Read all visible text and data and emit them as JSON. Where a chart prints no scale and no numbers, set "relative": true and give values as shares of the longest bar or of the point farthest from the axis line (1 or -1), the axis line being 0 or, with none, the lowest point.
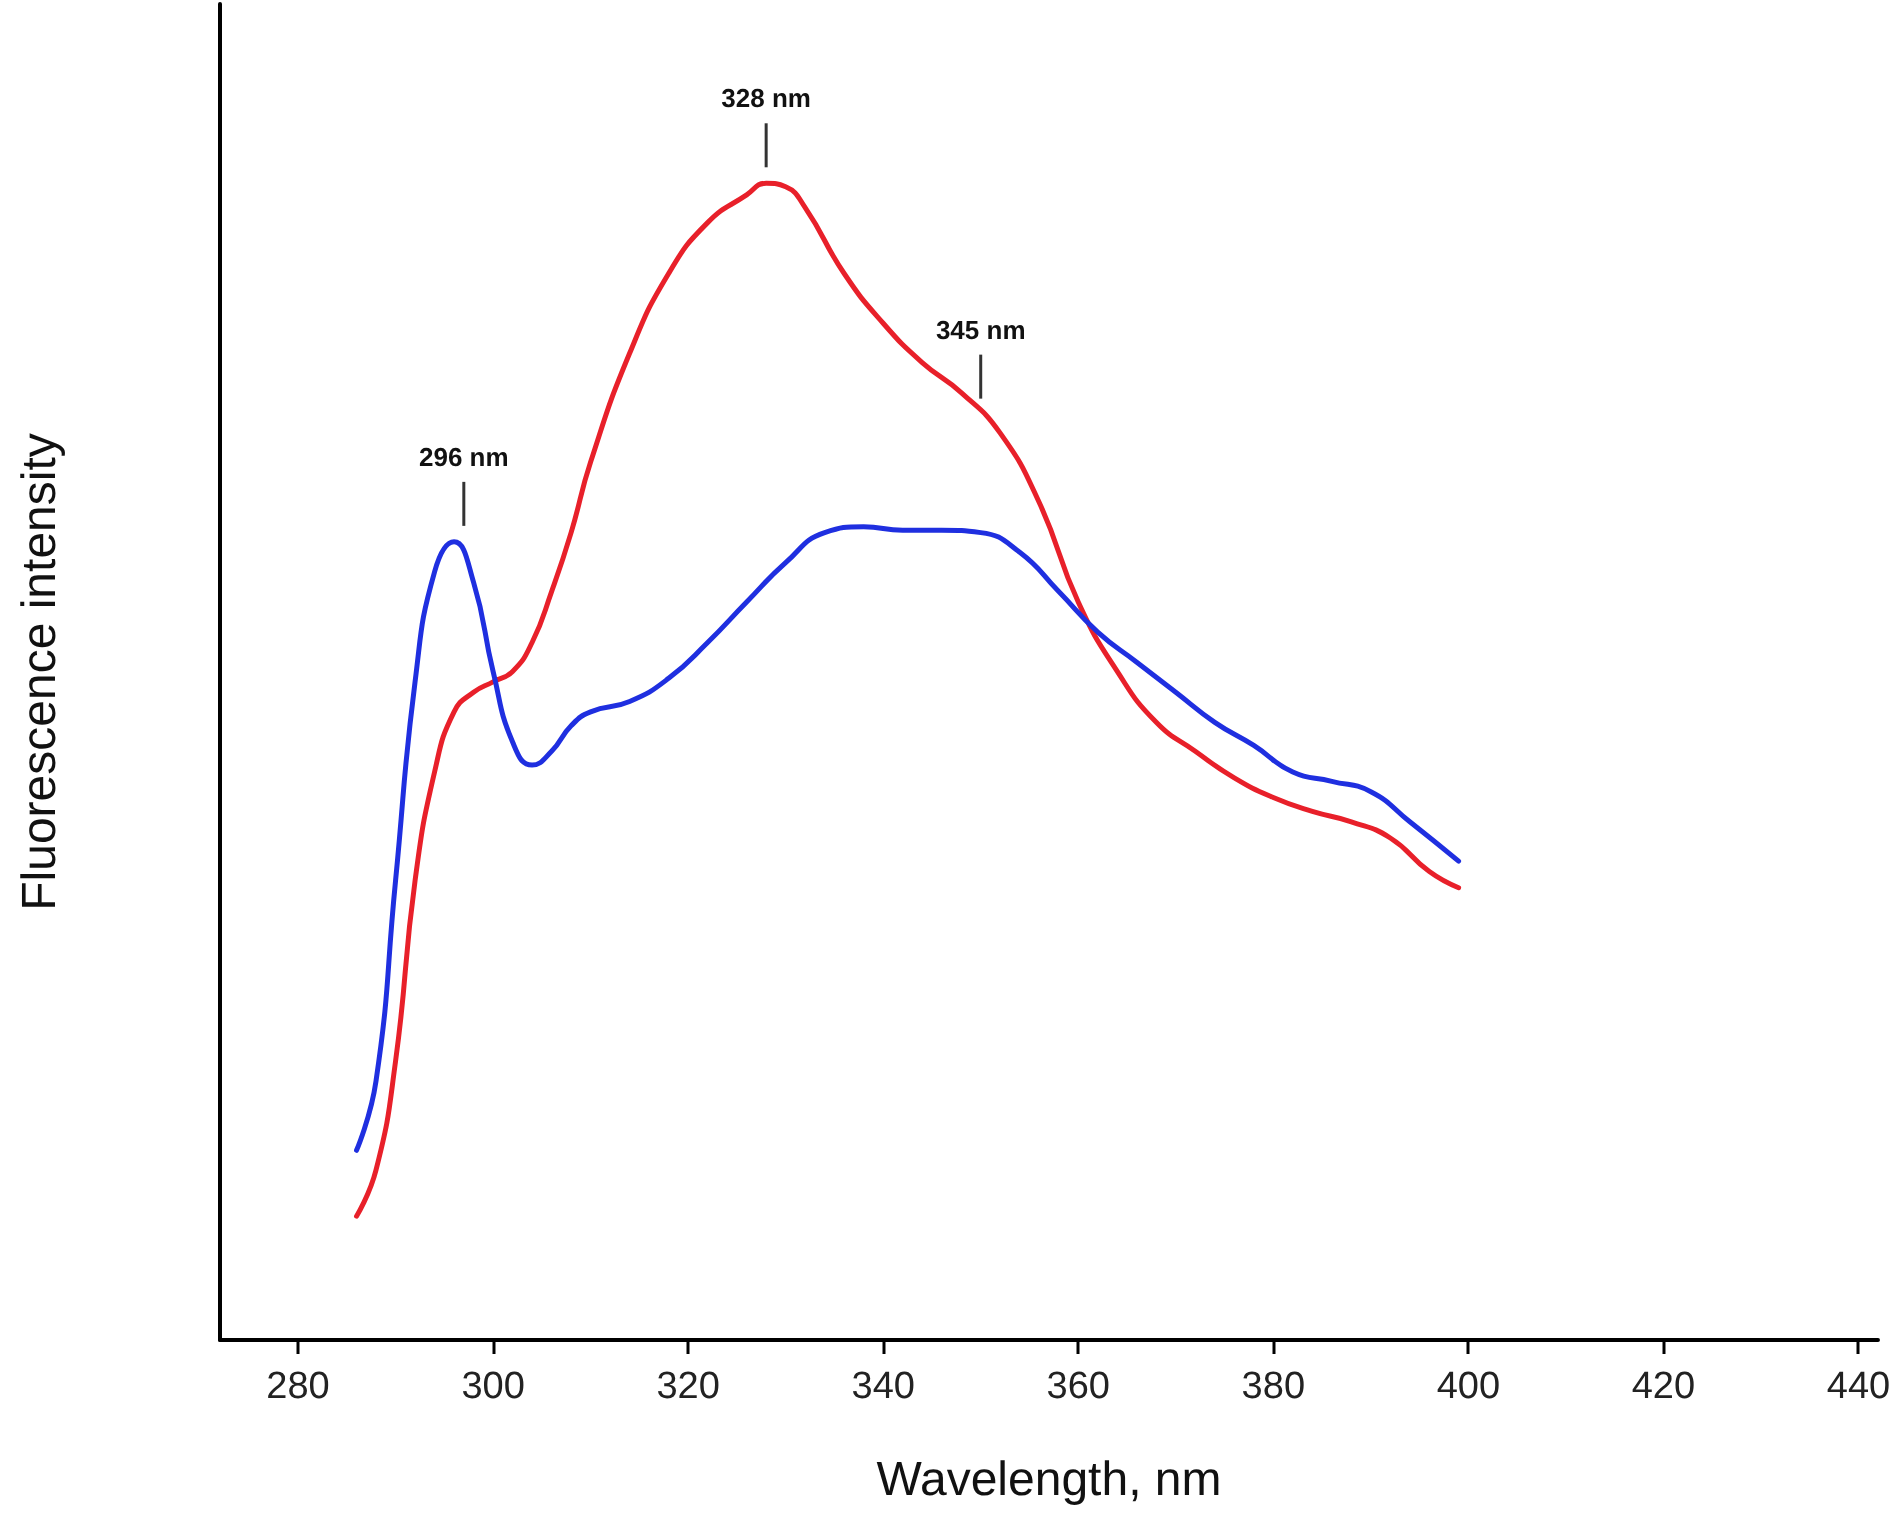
{
  "chart_data": {
    "type": "line",
    "relative": true,
    "xlabel": "Wavelength, nm",
    "ylabel": "Fluorescence intensity",
    "xlim": [
      272,
      442
    ],
    "xticks": [
      280,
      300,
      320,
      340,
      360,
      380,
      400,
      420,
      440
    ],
    "grid": false,
    "marker": "none",
    "line_style": "solid",
    "annotations": [
      {
        "text": "296 nm",
        "x": 297,
        "y": 0.69
      },
      {
        "text": "328 nm",
        "x": 328,
        "y": 1
      },
      {
        "text": "345 nm",
        "x": 350,
        "y": 0.8
      }
    ],
    "series": [
      {
        "color": "#e8202a",
        "x": [
          286,
          288,
          290,
          292,
          294,
          296,
          298,
          300,
          302,
          304,
          306,
          308,
          310,
          314,
          318,
          322,
          326,
          328,
          330,
          332,
          336,
          340,
          344,
          348,
          352,
          356,
          360,
          364,
          368,
          372,
          376,
          380,
          384,
          388,
          392,
          396,
          399
        ],
        "values": [
          0.107,
          0.147,
          0.241,
          0.397,
          0.491,
          0.543,
          0.56,
          0.569,
          0.578,
          0.603,
          0.647,
          0.698,
          0.759,
          0.853,
          0.922,
          0.966,
          0.99,
          1,
          0.997,
          0.979,
          0.922,
          0.879,
          0.845,
          0.819,
          0.784,
          0.724,
          0.638,
          0.578,
          0.534,
          0.509,
          0.486,
          0.469,
          0.457,
          0.448,
          0.434,
          0.405,
          0.391
        ]
      },
      {
        "color": "#1f2fe0",
        "x": [
          286,
          288,
          290,
          292,
          294,
          296,
          298,
          300,
          302,
          304,
          306,
          308,
          310,
          314,
          318,
          322,
          326,
          330,
          334,
          338,
          342,
          346,
          350,
          354,
          358,
          362,
          366,
          370,
          374,
          378,
          382,
          386,
          390,
          394,
          399
        ],
        "values": [
          0.164,
          0.224,
          0.397,
          0.569,
          0.664,
          0.69,
          0.655,
          0.578,
          0.517,
          0.497,
          0.509,
          0.531,
          0.543,
          0.552,
          0.572,
          0.603,
          0.638,
          0.672,
          0.698,
          0.703,
          0.7,
          0.7,
          0.698,
          0.681,
          0.647,
          0.612,
          0.586,
          0.56,
          0.534,
          0.514,
          0.491,
          0.483,
          0.474,
          0.448,
          0.414
        ]
      }
    ]
  }
}
